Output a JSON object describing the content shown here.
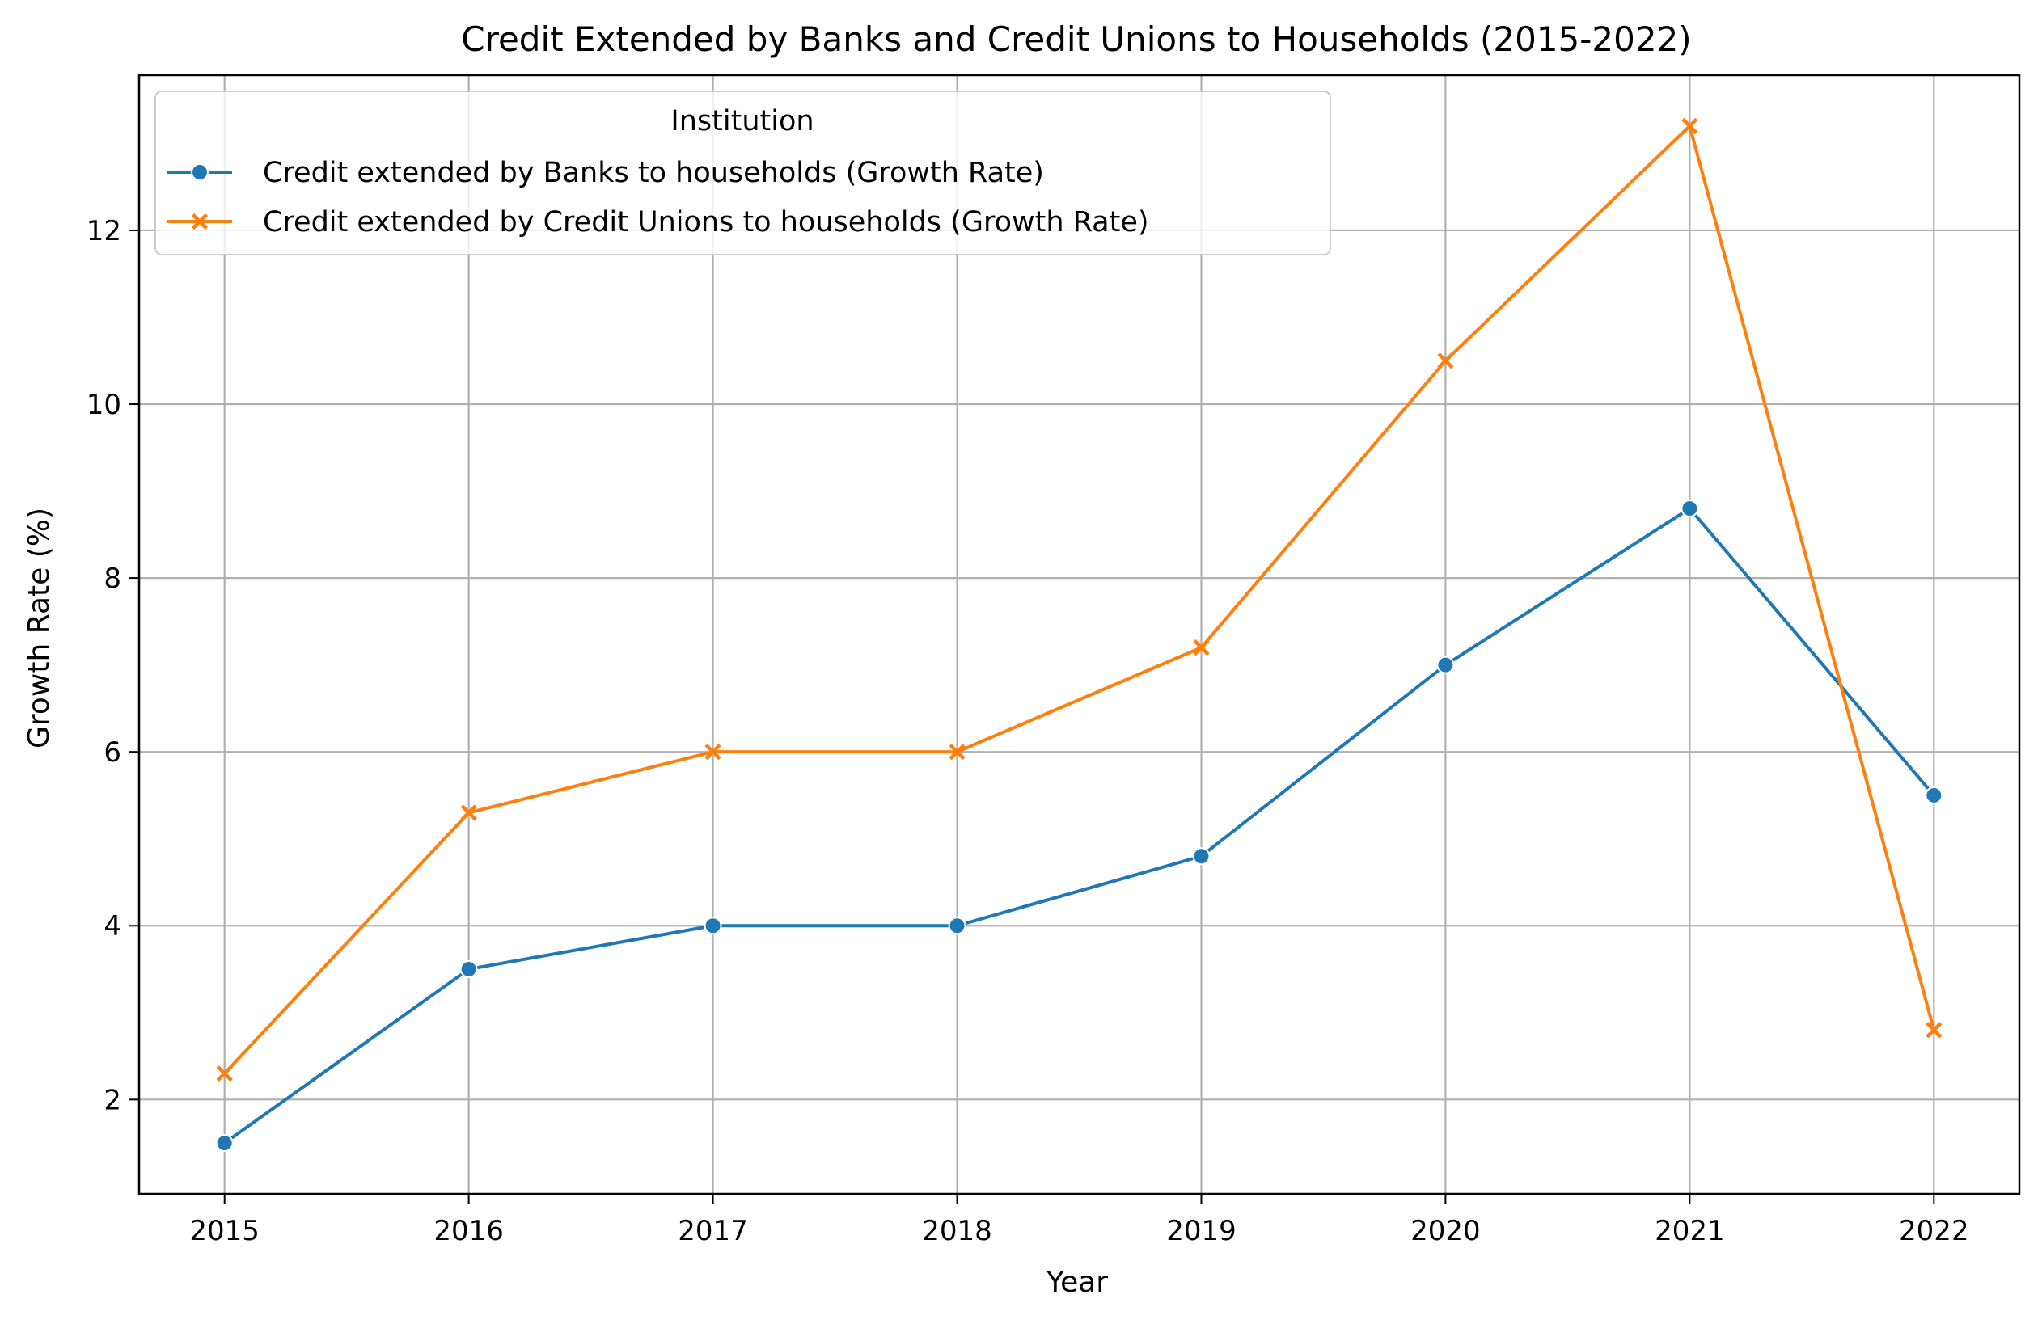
{
  "chart_data": {
    "type": "line",
    "title": "Credit Extended by Banks and Credit Unions to Households (2015-2022)",
    "xlabel": "Year",
    "ylabel": "Growth Rate (%)",
    "x": [
      2015,
      2016,
      2017,
      2018,
      2019,
      2020,
      2021,
      2022
    ],
    "x_tick_labels": [
      "2015",
      "2016",
      "2017",
      "2018",
      "2019",
      "2020",
      "2021",
      "2022"
    ],
    "xlim": [
      2014.65,
      2022.35
    ],
    "ylim": [
      0.915,
      13.785
    ],
    "y_ticks": [
      2,
      4,
      6,
      8,
      10,
      12
    ],
    "y_tick_labels": [
      "2",
      "4",
      "6",
      "8",
      "10",
      "12"
    ],
    "grid": true,
    "legend": {
      "title": "Institution",
      "placement": "upper-left"
    },
    "series": [
      {
        "name": "Credit extended by Banks to households (Growth Rate)",
        "color": "#1f77b4",
        "marker": "circle",
        "values": [
          1.5,
          3.5,
          4.0,
          4.0,
          4.8,
          7.0,
          8.8,
          5.5
        ]
      },
      {
        "name": "Credit extended by Credit Unions to households (Growth Rate)",
        "color": "#ff7f0e",
        "marker": "x",
        "values": [
          2.3,
          5.3,
          6.0,
          6.0,
          7.2,
          10.5,
          13.2,
          2.8
        ]
      }
    ]
  }
}
